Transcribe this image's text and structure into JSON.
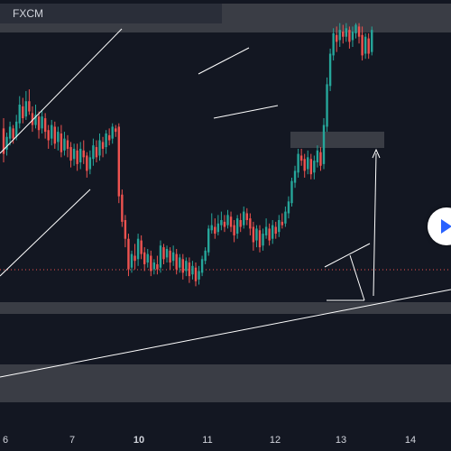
{
  "symbol": {
    "broker": "FXCM"
  },
  "colors": {
    "background": "#131722",
    "bullish": "#26a69a",
    "bearish": "#ef5350",
    "zone": "#3a3d45",
    "trendline": "#ffffff",
    "price_line": "#ef5350",
    "play_accent": "#2962ff"
  },
  "icons": {
    "play": "play-icon"
  },
  "chart_data": {
    "type": "candlestick",
    "x_ticks": [
      {
        "label": "6",
        "bold": false
      },
      {
        "label": "7",
        "bold": false
      },
      {
        "label": "10",
        "bold": true
      },
      {
        "label": "11",
        "bold": false
      },
      {
        "label": "12",
        "bold": false
      },
      {
        "label": "13",
        "bold": false
      },
      {
        "label": "14",
        "bold": false
      }
    ],
    "candles": [
      [
        210,
        180,
        222,
        170
      ],
      [
        185,
        200,
        205,
        178
      ],
      [
        198,
        212,
        218,
        190
      ],
      [
        210,
        198,
        214,
        192
      ],
      [
        200,
        218,
        226,
        196
      ],
      [
        216,
        238,
        248,
        210
      ],
      [
        236,
        222,
        246,
        216
      ],
      [
        224,
        242,
        254,
        220
      ],
      [
        242,
        230,
        256,
        226
      ],
      [
        228,
        214,
        236,
        206
      ],
      [
        214,
        226,
        238,
        210
      ],
      [
        224,
        208,
        230,
        198
      ],
      [
        210,
        224,
        232,
        204
      ],
      [
        222,
        206,
        228,
        198
      ],
      [
        208,
        196,
        214,
        186
      ],
      [
        198,
        214,
        220,
        190
      ],
      [
        212,
        192,
        218,
        186
      ],
      [
        194,
        206,
        212,
        184
      ],
      [
        204,
        182,
        214,
        176
      ],
      [
        184,
        198,
        206,
        178
      ],
      [
        196,
        186,
        202,
        176
      ],
      [
        188,
        172,
        194,
        164
      ],
      [
        174,
        186,
        192,
        166
      ],
      [
        184,
        168,
        192,
        160
      ],
      [
        170,
        186,
        194,
        162
      ],
      [
        184,
        176,
        196,
        168
      ],
      [
        178,
        160,
        182,
        152
      ],
      [
        162,
        176,
        184,
        156
      ],
      [
        174,
        190,
        198,
        166
      ],
      [
        188,
        176,
        196,
        170
      ],
      [
        178,
        196,
        204,
        172
      ],
      [
        194,
        186,
        200,
        176
      ],
      [
        188,
        204,
        208,
        180
      ],
      [
        202,
        196,
        210,
        190
      ],
      [
        198,
        212,
        216,
        192
      ],
      [
        210,
        206,
        214,
        200
      ],
      [
        212,
        130,
        216,
        122
      ],
      [
        132,
        100,
        138,
        94
      ],
      [
        102,
        80,
        108,
        70
      ],
      [
        80,
        44,
        86,
        36
      ],
      [
        46,
        62,
        66,
        40
      ],
      [
        60,
        54,
        74,
        44
      ],
      [
        56,
        80,
        86,
        48
      ],
      [
        78,
        62,
        84,
        56
      ],
      [
        64,
        50,
        70,
        42
      ],
      [
        52,
        62,
        68,
        46
      ],
      [
        60,
        42,
        66,
        36
      ],
      [
        44,
        52,
        56,
        38
      ],
      [
        50,
        44,
        60,
        38
      ],
      [
        46,
        72,
        78,
        40
      ],
      [
        70,
        56,
        74,
        50
      ],
      [
        58,
        68,
        72,
        52
      ],
      [
        66,
        52,
        70,
        44
      ],
      [
        54,
        64,
        72,
        48
      ],
      [
        62,
        44,
        68,
        38
      ],
      [
        46,
        58,
        62,
        40
      ],
      [
        56,
        40,
        62,
        32
      ],
      [
        42,
        54,
        58,
        36
      ],
      [
        52,
        36,
        58,
        28
      ],
      [
        38,
        48,
        54,
        32
      ],
      [
        46,
        30,
        52,
        24
      ],
      [
        32,
        42,
        48,
        26
      ],
      [
        40,
        56,
        60,
        36
      ],
      [
        54,
        66,
        70,
        50
      ],
      [
        64,
        92,
        96,
        60
      ],
      [
        90,
        96,
        110,
        86
      ],
      [
        94,
        86,
        104,
        80
      ],
      [
        88,
        98,
        108,
        84
      ],
      [
        96,
        102,
        112,
        90
      ],
      [
        100,
        94,
        108,
        88
      ],
      [
        96,
        108,
        114,
        92
      ],
      [
        106,
        94,
        112,
        88
      ],
      [
        96,
        84,
        102,
        76
      ],
      [
        86,
        104,
        108,
        80
      ],
      [
        102,
        94,
        110,
        88
      ],
      [
        96,
        112,
        118,
        92
      ],
      [
        110,
        102,
        116,
        96
      ],
      [
        104,
        92,
        110,
        84
      ],
      [
        94,
        76,
        100,
        66
      ],
      [
        78,
        92,
        96,
        70
      ],
      [
        90,
        70,
        96,
        64
      ],
      [
        72,
        86,
        92,
        66
      ],
      [
        84,
        94,
        104,
        80
      ],
      [
        92,
        78,
        98,
        72
      ],
      [
        80,
        96,
        102,
        74
      ],
      [
        94,
        86,
        100,
        80
      ],
      [
        88,
        102,
        108,
        82
      ],
      [
        100,
        96,
        110,
        92
      ],
      [
        98,
        112,
        118,
        94
      ],
      [
        110,
        124,
        130,
        104
      ],
      [
        122,
        148,
        152,
        118
      ],
      [
        146,
        160,
        166,
        140
      ],
      [
        158,
        180,
        186,
        152
      ],
      [
        178,
        172,
        186,
        166
      ],
      [
        174,
        160,
        180,
        152
      ],
      [
        162,
        176,
        184,
        156
      ],
      [
        174,
        156,
        180,
        150
      ],
      [
        158,
        172,
        178,
        150
      ],
      [
        170,
        184,
        190,
        164
      ],
      [
        182,
        166,
        188,
        160
      ],
      [
        168,
        214,
        222,
        162
      ],
      [
        212,
        262,
        270,
        206
      ],
      [
        260,
        298,
        304,
        254
      ],
      [
        296,
        322,
        328,
        290
      ],
      [
        320,
        312,
        330,
        300
      ],
      [
        314,
        326,
        334,
        306
      ],
      [
        324,
        318,
        332,
        310
      ],
      [
        318,
        328,
        334,
        312
      ],
      [
        326,
        312,
        330,
        304
      ],
      [
        314,
        324,
        330,
        306
      ],
      [
        322,
        332,
        334,
        316
      ],
      [
        330,
        318,
        334,
        310
      ],
      [
        320,
        296,
        330,
        290
      ],
      [
        298,
        318,
        322,
        292
      ],
      [
        316,
        298,
        322,
        292
      ],
      [
        300,
        326,
        330,
        296
      ]
    ]
  }
}
